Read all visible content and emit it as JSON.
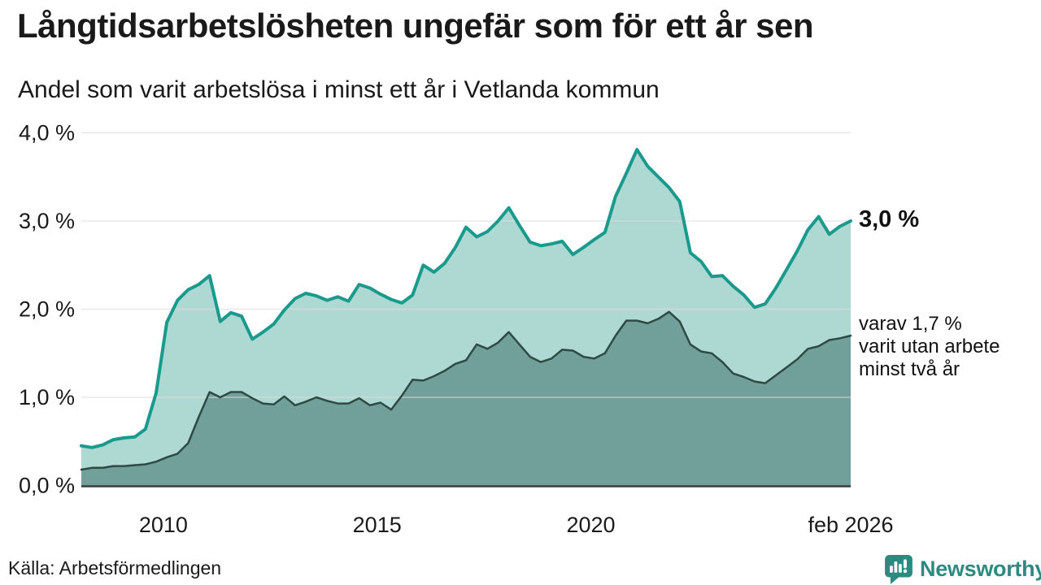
{
  "title": "Långtidsarbetslösheten ungefär som för ett år sen",
  "subtitle": "Andel som varit arbetslösa i minst ett år i Vetlanda kommun",
  "source": "Källa: Arbetsförmedlingen",
  "branding": {
    "name": "Newsworthy",
    "color": "#2e8a80"
  },
  "annotations": {
    "latest_total": "3,0 %",
    "secondary_text": "varav 1,7 %\nvarit utan arbete\nminst två år"
  },
  "chart_data": {
    "type": "area",
    "title": "Långtidsarbetslösheten ungefär som för ett år sen",
    "xlabel": "",
    "ylabel": "",
    "x_unit": "decimal_year",
    "xlim": [
      2008.08,
      2026.08
    ],
    "ylim": [
      0,
      4.2
    ],
    "grid": "horizontal",
    "grid_color": "#dcdcdc",
    "axis_color": "#3b3b3b",
    "x": [
      2008.08,
      2008.33,
      2008.58,
      2008.83,
      2009.08,
      2009.33,
      2009.58,
      2009.83,
      2010.08,
      2010.33,
      2010.58,
      2010.83,
      2011.08,
      2011.33,
      2011.58,
      2011.83,
      2012.08,
      2012.33,
      2012.58,
      2012.83,
      2013.08,
      2013.33,
      2013.58,
      2013.83,
      2014.08,
      2014.33,
      2014.58,
      2014.83,
      2015.08,
      2015.33,
      2015.58,
      2015.83,
      2016.08,
      2016.33,
      2016.58,
      2016.83,
      2017.08,
      2017.33,
      2017.58,
      2017.83,
      2018.08,
      2018.33,
      2018.58,
      2018.83,
      2019.08,
      2019.33,
      2019.58,
      2019.83,
      2020.08,
      2020.33,
      2020.58,
      2020.83,
      2021.08,
      2021.33,
      2021.58,
      2021.83,
      2022.08,
      2022.33,
      2022.58,
      2022.83,
      2023.08,
      2023.33,
      2023.58,
      2023.83,
      2024.08,
      2024.33,
      2024.58,
      2024.83,
      2025.08,
      2025.33,
      2025.58,
      2025.83,
      2026.08
    ],
    "series": [
      {
        "name": "arbetslösa minst ett år",
        "line_color": "#1a9a8c",
        "fill_color": "#aed8d2",
        "line_width": 4,
        "values": [
          0.45,
          0.43,
          0.46,
          0.52,
          0.54,
          0.55,
          0.64,
          1.05,
          1.85,
          2.1,
          2.22,
          2.28,
          2.38,
          1.86,
          1.96,
          1.92,
          1.66,
          1.74,
          1.83,
          1.99,
          2.12,
          2.18,
          2.15,
          2.1,
          2.14,
          2.09,
          2.28,
          2.24,
          2.17,
          2.11,
          2.07,
          2.16,
          2.5,
          2.42,
          2.52,
          2.7,
          2.93,
          2.82,
          2.88,
          3.0,
          3.15,
          2.95,
          2.76,
          2.72,
          2.74,
          2.77,
          2.62,
          2.7,
          2.79,
          2.87,
          3.28,
          3.54,
          3.81,
          3.62,
          3.5,
          3.38,
          3.22,
          2.64,
          2.54,
          2.37,
          2.38,
          2.26,
          2.16,
          2.02,
          2.06,
          2.24,
          2.45,
          2.66,
          2.9,
          3.05,
          2.85,
          2.94,
          3.0
        ]
      },
      {
        "name": "varav utan arbete minst två år",
        "line_color": "#2f4a45",
        "fill_color": "#71a09a",
        "line_width": 2.5,
        "values": [
          0.18,
          0.2,
          0.2,
          0.22,
          0.22,
          0.23,
          0.24,
          0.27,
          0.32,
          0.36,
          0.48,
          0.78,
          1.06,
          1.0,
          1.06,
          1.06,
          0.99,
          0.93,
          0.92,
          1.01,
          0.91,
          0.95,
          1.0,
          0.96,
          0.93,
          0.93,
          0.99,
          0.91,
          0.94,
          0.86,
          1.02,
          1.2,
          1.19,
          1.24,
          1.3,
          1.38,
          1.42,
          1.6,
          1.55,
          1.62,
          1.74,
          1.6,
          1.46,
          1.4,
          1.44,
          1.54,
          1.53,
          1.46,
          1.44,
          1.5,
          1.7,
          1.87,
          1.87,
          1.84,
          1.89,
          1.97,
          1.86,
          1.6,
          1.52,
          1.5,
          1.4,
          1.27,
          1.23,
          1.18,
          1.16,
          1.25,
          1.34,
          1.43,
          1.55,
          1.58,
          1.65,
          1.67,
          1.7
        ]
      }
    ],
    "y_ticks": [
      {
        "value": 0,
        "label": "0,0 %"
      },
      {
        "value": 1,
        "label": "1,0 %"
      },
      {
        "value": 2,
        "label": "2,0 %"
      },
      {
        "value": 3,
        "label": "3,0 %"
      },
      {
        "value": 4,
        "label": "4,0 %"
      }
    ],
    "x_ticks": [
      {
        "value": 2010,
        "label": "2010"
      },
      {
        "value": 2015,
        "label": "2015"
      },
      {
        "value": 2020,
        "label": "2020"
      },
      {
        "value": 2026.08,
        "label": "feb 2026"
      }
    ],
    "end_labels": [
      "3,0 %",
      "varav 1,7 % varit utan arbete minst två år"
    ]
  }
}
